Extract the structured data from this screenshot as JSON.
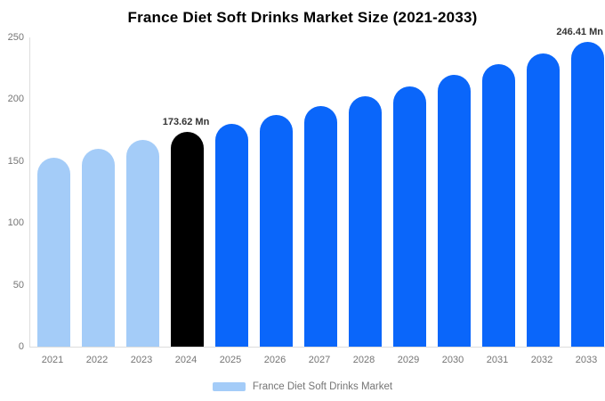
{
  "title": "France Diet Soft Drinks Market Size (2021-2033)",
  "legend": {
    "label": "France Diet Soft Drinks Market",
    "swatch_color": "#a4ccf8"
  },
  "colors": {
    "historical_bar": "#a4ccf8",
    "base_year_bar": "#000000",
    "forecast_bar": "#0a66fa",
    "axis_line": "#dddddd",
    "tick_text": "#757575",
    "data_label_text": "#333333",
    "title_text": "#000000"
  },
  "chart_data": {
    "type": "bar",
    "title": "France Diet Soft Drinks Market Size (2021-2033)",
    "xlabel": "",
    "ylabel": "",
    "unit": "Mn",
    "categories": [
      "2021",
      "2022",
      "2023",
      "2024",
      "2025",
      "2026",
      "2027",
      "2028",
      "2029",
      "2030",
      "2031",
      "2032",
      "2033"
    ],
    "values": [
      152.7,
      159.8,
      166.8,
      173.62,
      180.3,
      187.2,
      194.4,
      202.7,
      210.6,
      219.5,
      228.1,
      237.1,
      246.41
    ],
    "bar_roles": [
      "historical",
      "historical",
      "historical",
      "base_year",
      "forecast",
      "forecast",
      "forecast",
      "forecast",
      "forecast",
      "forecast",
      "forecast",
      "forecast",
      "forecast"
    ],
    "annotations": [
      {
        "category": "2024",
        "text": "173.62 Mn"
      },
      {
        "category": "2033",
        "text": "246.41 Mn"
      }
    ],
    "ylim": [
      0,
      250
    ],
    "yticks": [
      0,
      50,
      100,
      150,
      200,
      250
    ],
    "grid": false,
    "legend_position": "bottom-center",
    "legend_entries": [
      "France Diet Soft Drinks Market"
    ]
  }
}
